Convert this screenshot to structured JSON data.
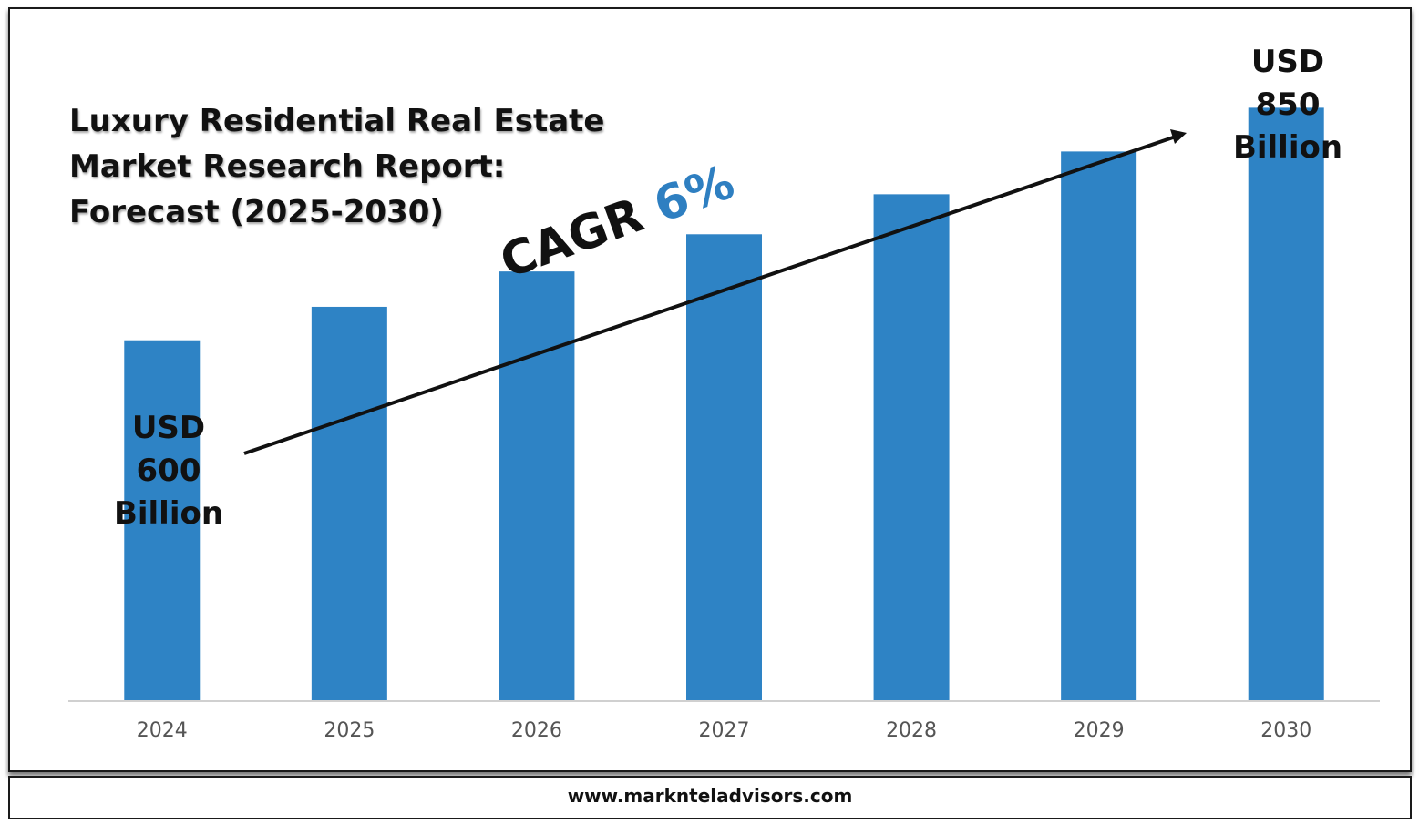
{
  "title_lines": [
    "Luxury Residential Real Estate",
    "Market Research Report:",
    "Forecast (2025-2030)"
  ],
  "start_callout": [
    "USD",
    "600",
    "Billion"
  ],
  "end_callout": [
    "USD",
    "850",
    "Billion"
  ],
  "cagr": {
    "label": "CAGR",
    "value": "6%"
  },
  "footer": "www.marknteladvisors.com",
  "colors": {
    "bar": "#2e83c5",
    "cagr_value": "#2e7fc1",
    "axis": "#d0d0d0"
  },
  "chart_data": {
    "type": "bar",
    "categories": [
      "2024",
      "2025",
      "2026",
      "2027",
      "2028",
      "2029",
      "2030"
    ],
    "values": [
      600,
      636,
      674,
      714,
      757,
      803,
      850
    ],
    "ylim": [
      212,
      868
    ],
    "grid": false,
    "legend": "none"
  }
}
